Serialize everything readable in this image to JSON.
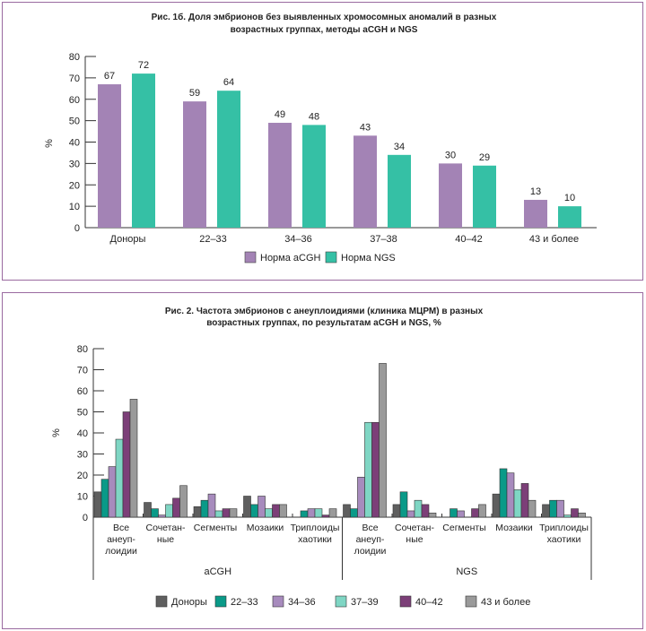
{
  "chart_data": [
    {
      "type": "bar",
      "title_lines": [
        "Рис. 1б. Доля эмбрионов без выявленных хромосомных аномалий в разных",
        "возрастных группах, методы aCGH и NGS"
      ],
      "ylabel": "%",
      "ylim": [
        0,
        80
      ],
      "yticks": [
        0,
        10,
        20,
        30,
        40,
        50,
        60,
        70,
        80
      ],
      "categories": [
        "Доноры",
        "22–33",
        "34–36",
        "37–38",
        "40–42",
        "43 и более"
      ],
      "series": [
        {
          "name": "Норма aCGH",
          "color": "#a383b5",
          "values": [
            67,
            59,
            49,
            43,
            30,
            13
          ]
        },
        {
          "name": "Норма NGS",
          "color": "#35c0a5",
          "values": [
            72,
            64,
            48,
            34,
            29,
            10
          ]
        }
      ],
      "legend": "bottom",
      "grid": false
    },
    {
      "type": "bar",
      "title_lines": [
        "Рис. 2. Частота эмбрионов с анеуплоидиями (клиника МЦРМ) в разных",
        "возрастных группах, по результатам aCGH и NGS, %"
      ],
      "ylabel": "%",
      "ylim": [
        0,
        80
      ],
      "yticks": [
        0,
        10,
        20,
        30,
        40,
        50,
        60,
        70,
        80
      ],
      "groups": [
        "aCGH",
        "NGS"
      ],
      "categories": [
        [
          "Все",
          "анеуп-",
          "лоидии"
        ],
        [
          "Сочетан-",
          "ные"
        ],
        [
          "Сегменты"
        ],
        [
          "Мозаики"
        ],
        [
          "Триплоиды",
          "хаотики"
        ]
      ],
      "series": [
        {
          "name": "Доноры",
          "color": "#5f5f5f",
          "values": {
            "aCGH": [
              12,
              7,
              5,
              10,
              0
            ],
            "NGS": [
              6,
              6,
              0,
              11,
              6
            ]
          }
        },
        {
          "name": "22–33",
          "color": "#0a9a88",
          "values": {
            "aCGH": [
              18,
              4,
              8,
              6,
              3
            ],
            "NGS": [
              4,
              12,
              4,
              23,
              8
            ]
          }
        },
        {
          "name": "34–36",
          "color": "#a78bbd",
          "values": {
            "aCGH": [
              24,
              1,
              11,
              10,
              4
            ],
            "NGS": [
              19,
              3,
              3,
              21,
              8
            ]
          }
        },
        {
          "name": "37–39",
          "color": "#7fd6c4",
          "values": {
            "aCGH": [
              37,
              6,
              3,
              4,
              4
            ],
            "NGS": [
              45,
              8,
              0,
              13,
              1
            ]
          }
        },
        {
          "name": "40–42",
          "color": "#7c3f78",
          "values": {
            "aCGH": [
              50,
              9,
              4,
              6,
              1
            ],
            "NGS": [
              45,
              6,
              4,
              16,
              4
            ]
          }
        },
        {
          "name": "43 и более",
          "color": "#9a9a9a",
          "values": {
            "aCGH": [
              56,
              15,
              4,
              6,
              4
            ],
            "NGS": [
              73,
              2,
              6,
              8,
              2
            ]
          }
        }
      ],
      "legend": "bottom",
      "grid": false
    }
  ]
}
